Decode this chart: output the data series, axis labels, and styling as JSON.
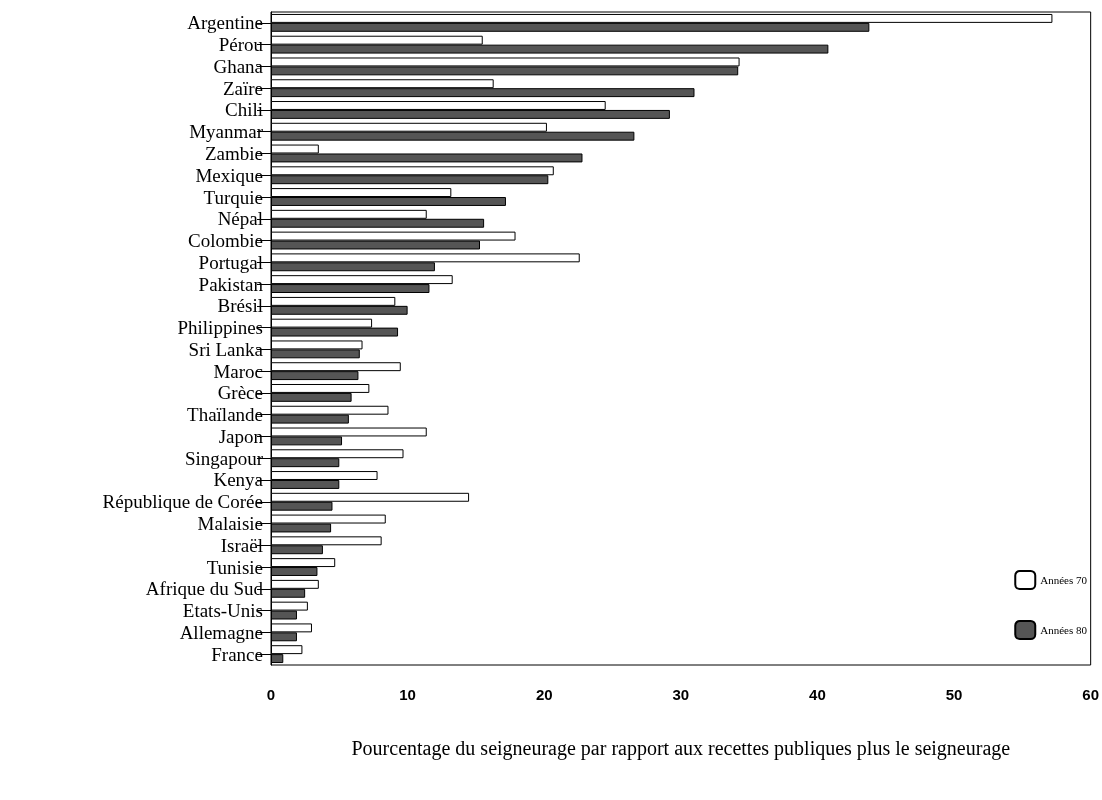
{
  "chart_data": {
    "type": "bar",
    "orientation": "horizontal",
    "xlabel": "Pourcentage du seigneurage par rapport aux recettes publiques plus le seigneurage",
    "categories": [
      "Argentine",
      "Pérou",
      "Ghana",
      "Zaïre",
      "Chili",
      "Myanmar",
      "Zambie",
      "Mexique",
      "Turquie",
      "Népal",
      "Colombie",
      "Portugal",
      "Pakistan",
      "Brésil",
      "Philippines",
      "Sri Lanka",
      "Maroc",
      "Grèce",
      "Thaïlande",
      "Japon",
      "Singapour",
      "Kenya",
      "République de Corée",
      "Malaisie",
      "Israël",
      "Tunisie",
      "Afrique du Sud",
      "Etats-Unis",
      "Allemagne",
      "France"
    ],
    "series": [
      {
        "name": "Années 70",
        "color": "#ffffff",
        "values": [
          57.2,
          15.5,
          34.3,
          16.3,
          24.5,
          20.2,
          3.5,
          20.7,
          13.2,
          11.4,
          17.9,
          22.6,
          13.3,
          9.1,
          7.4,
          6.7,
          9.5,
          7.2,
          8.6,
          11.4,
          9.7,
          7.8,
          14.5,
          8.4,
          8.1,
          4.7,
          3.5,
          2.7,
          3.0,
          2.3
        ]
      },
      {
        "name": "Années 80",
        "color": "#555555",
        "values": [
          43.8,
          40.8,
          34.2,
          31.0,
          29.2,
          26.6,
          22.8,
          20.3,
          17.2,
          15.6,
          15.3,
          12.0,
          11.6,
          10.0,
          9.3,
          6.5,
          6.4,
          5.9,
          5.7,
          5.2,
          5.0,
          5.0,
          4.5,
          4.4,
          3.8,
          3.4,
          2.5,
          1.9,
          1.9,
          0.9
        ]
      }
    ],
    "xlim": [
      0,
      60
    ],
    "xticks": [
      0,
      10,
      20,
      30,
      40,
      50,
      60
    ],
    "grid": false,
    "legend": "bottom right"
  }
}
